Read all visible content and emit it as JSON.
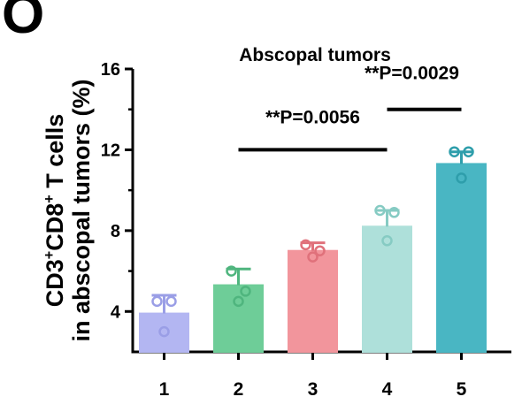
{
  "panel_label": "O",
  "chart_data": {
    "type": "bar",
    "title": "Abscopal tumors",
    "ylabel_line1": {
      "base": "CD3",
      "sup1": "+",
      "mid": "CD8",
      "sup2": "+",
      "rest": " T cells"
    },
    "ylabel_line2": "in abscopal tumors (%)",
    "categories": [
      "1",
      "2",
      "3",
      "4",
      "5"
    ],
    "values": [
      3.9,
      5.3,
      7.0,
      8.2,
      11.3
    ],
    "errors": [
      0.9,
      0.8,
      0.4,
      0.8,
      0.6
    ],
    "points": [
      [
        4.5,
        4.5,
        3.0
      ],
      [
        6.0,
        5.0,
        4.5
      ],
      [
        7.3,
        7.0,
        6.7
      ],
      [
        9.0,
        8.9,
        7.5
      ],
      [
        11.9,
        11.9,
        10.6
      ]
    ],
    "colors": [
      "#b3b6f2",
      "#6ecd98",
      "#f2959c",
      "#aee0da",
      "#49b6c3"
    ],
    "point_colors": [
      "#9a9ee6",
      "#4fb57e",
      "#e0717b",
      "#86cbc3",
      "#2e9eab"
    ],
    "yticks": [
      4,
      8,
      12,
      16
    ],
    "ylim": [
      2,
      16
    ],
    "grid": false,
    "annotations": [
      {
        "text": "**P=0.0056",
        "from": 1,
        "to": 3,
        "y": 12.0,
        "label_y": 13.3
      },
      {
        "text": "**P=0.0029",
        "from": 3,
        "to": 4,
        "y": 14.0,
        "label_y": 15.5
      }
    ]
  }
}
